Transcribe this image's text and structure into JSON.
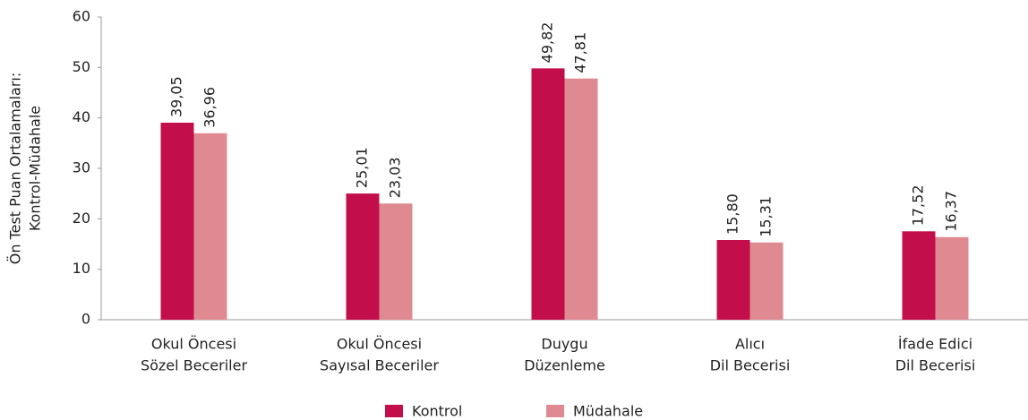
{
  "chart_data": {
    "type": "bar",
    "ylabel": [
      "Ön Test Puan Ortalamaları:",
      "Kontrol-Müdahale"
    ],
    "categories": [
      [
        "Okul Öncesi",
        "Sözel Beceriler"
      ],
      [
        "Okul Öncesi",
        "Sayısal Beceriler"
      ],
      [
        "Duygu",
        "Düzenleme"
      ],
      [
        "Alıcı",
        "Dil Becerisi"
      ],
      [
        "İfade Edici",
        "Dil Becerisi"
      ]
    ],
    "series": [
      {
        "name": "Kontrol",
        "color": "#c20e4a",
        "values": [
          39.05,
          25.01,
          49.82,
          15.8,
          17.52
        ],
        "value_labels": [
          "39,05",
          "25,01",
          "49,82",
          "15,80",
          "17,52"
        ]
      },
      {
        "name": "Müdahale",
        "color": "#de8a90",
        "values": [
          36.96,
          23.03,
          47.81,
          15.31,
          16.37
        ],
        "value_labels": [
          "36,96",
          "23,03",
          "47,81",
          "15,31",
          "16,37"
        ]
      }
    ],
    "ylim": [
      0,
      60
    ],
    "yticks": [
      0,
      10,
      20,
      30,
      40,
      50,
      60
    ],
    "legend": "bottom"
  }
}
